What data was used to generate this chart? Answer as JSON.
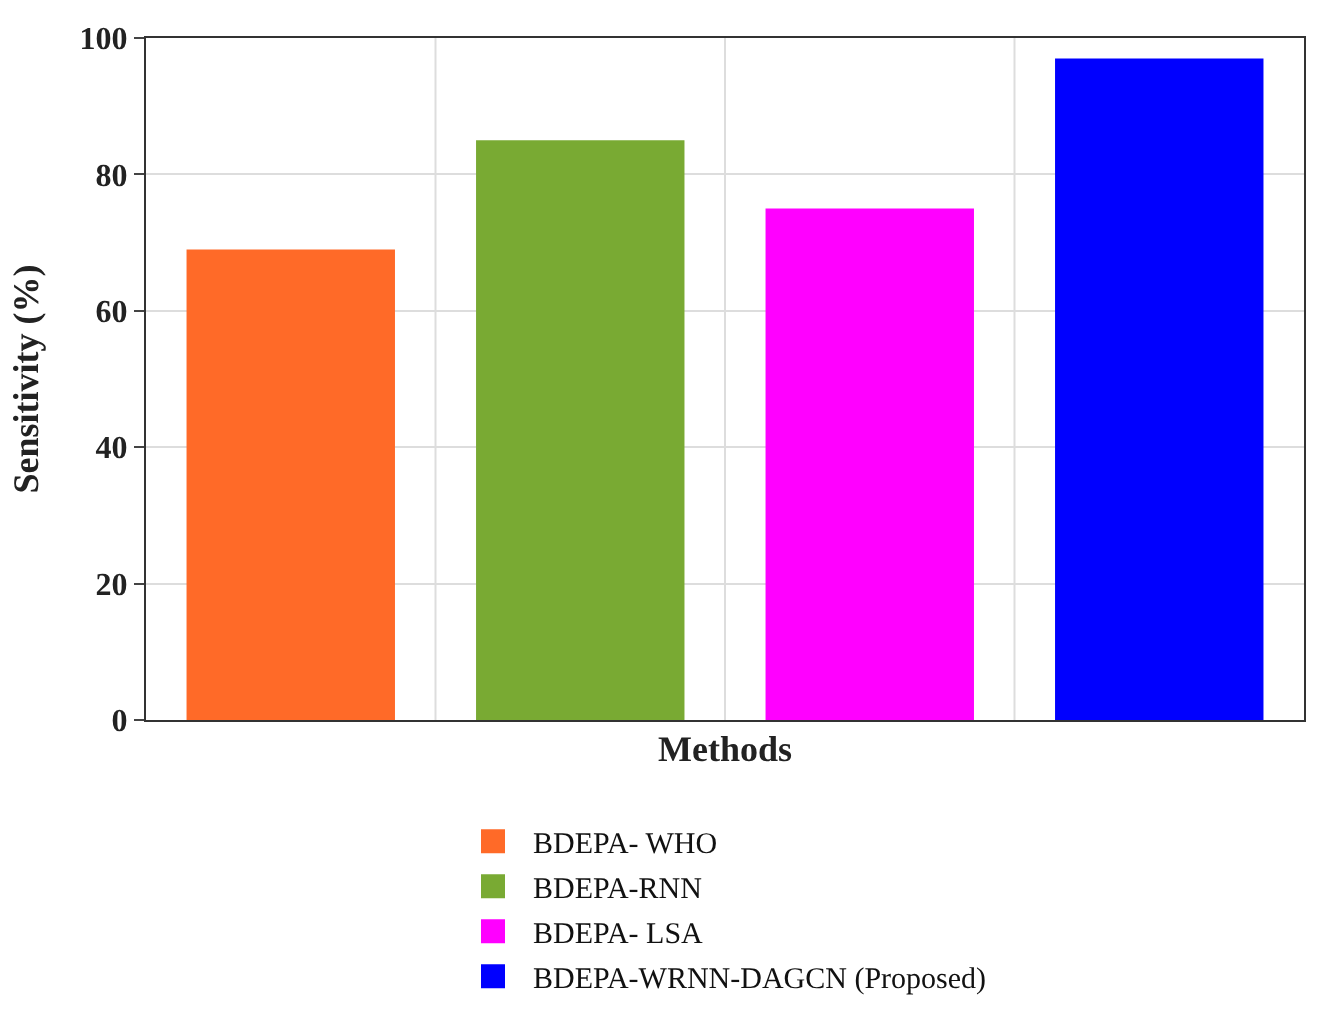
{
  "chart_data": {
    "type": "bar",
    "xlabel": "Methods",
    "ylabel": "Sensitivity (%)",
    "categories": [
      null,
      null,
      null,
      null
    ],
    "series": [
      {
        "name": "BDEPA- WHO",
        "color": "#ff6a28",
        "values": [
          69,
          null,
          null,
          null
        ]
      },
      {
        "name": "BDEPA-RNN",
        "color": "#79aa33",
        "values": [
          null,
          85,
          null,
          null
        ]
      },
      {
        "name": "BDEPA- LSA",
        "color": "#ff00ff",
        "values": [
          null,
          null,
          75,
          null
        ]
      },
      {
        "name": "BDEPA-WRNN-DAGCN (Proposed)",
        "color": "#0000ff",
        "values": [
          null,
          null,
          null,
          97
        ]
      }
    ],
    "ylim": [
      0,
      100
    ],
    "yticks": [
      0,
      20,
      40,
      60,
      80,
      100
    ],
    "grid": true,
    "legend": "bottom"
  }
}
